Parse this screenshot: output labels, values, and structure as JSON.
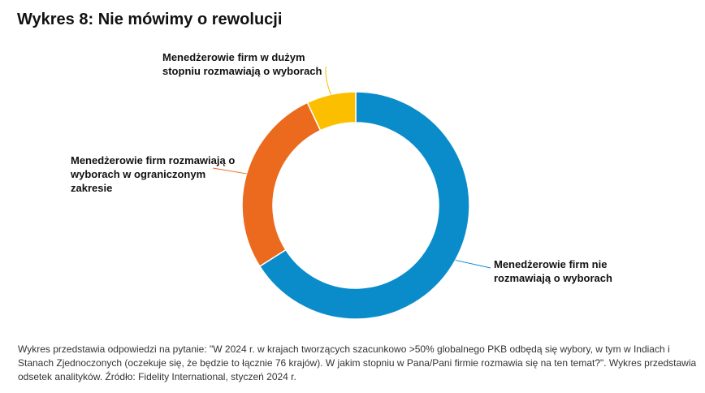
{
  "title": "Wykres 8: Nie mówimy o rewolucji",
  "chart_data": {
    "type": "pie",
    "title": "Wykres 8: Nie mówimy o rewolucji",
    "donut": true,
    "labels": [
      "Menedżerowie firm nie rozmawiają o wyborach",
      "Menedżerowie firm rozmawiają o wyborach w ograniczonym zakresie",
      "Menedżerowie firm w dużym stopniu rozmawiają o wyborach"
    ],
    "values": [
      66,
      27,
      7
    ],
    "colors": [
      "#0a8ccb",
      "#eb6a1e",
      "#fbbf00"
    ],
    "legend": "none"
  },
  "labels": {
    "yellow": "Menedżerowie firm w dużym stopniu rozmawiają o wyborach",
    "orange": "Menedżerowie firm rozmawiają o wyborach w ograniczonym zakresie",
    "blue": "Menedżerowie firm nie rozmawiają o wyborach"
  },
  "footnote": "Wykres przedstawia odpowiedzi na pytanie: \"W 2024 r. w krajach tworzących szacunkowo >50% globalnego PKB odbędą się wybory, w tym w Indiach i Stanach Zjednoczonych (oczekuje się, że będzie to łącznie 76 krajów). W jakim stopniu w Pana/Pani firmie rozmawia się na ten temat?\". Wykres przedstawia odsetek analityków. Źródło: Fidelity International, styczeń 2024 r."
}
